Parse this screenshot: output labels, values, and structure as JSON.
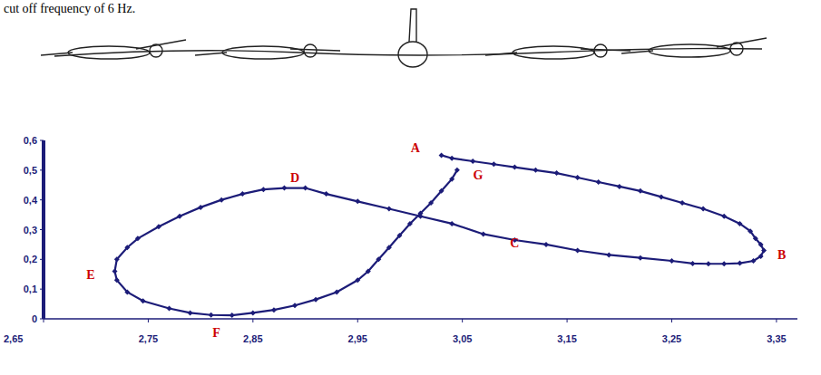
{
  "chart_data": {
    "type": "line",
    "subtitle": "cut off frequency of 6 Hz.",
    "series": [
      {
        "color": "#1c1c78",
        "marker": "diamond",
        "line_style": "solid",
        "x": [
          3.03,
          3.04,
          3.06,
          3.08,
          3.1,
          3.12,
          3.14,
          3.16,
          3.18,
          3.2,
          3.22,
          3.24,
          3.26,
          3.28,
          3.3,
          3.315,
          3.325,
          3.33,
          3.335,
          3.338,
          3.335,
          3.328,
          3.315,
          3.3,
          3.285,
          3.27,
          3.25,
          3.22,
          3.19,
          3.16,
          3.13,
          3.1,
          3.07,
          3.04,
          3.01,
          2.98,
          2.95,
          2.92,
          2.9,
          2.88,
          2.86,
          2.84,
          2.82,
          2.8,
          2.78,
          2.76,
          2.74,
          2.73,
          2.72,
          2.718,
          2.72,
          2.73,
          2.745,
          2.77,
          2.79,
          2.81,
          2.83,
          2.85,
          2.87,
          2.89,
          2.91,
          2.93,
          2.95,
          2.96,
          2.97,
          2.98,
          2.99,
          3.0,
          3.01,
          3.02,
          3.03,
          3.04,
          3.045
        ],
        "values": [
          0.55,
          0.54,
          0.53,
          0.52,
          0.51,
          0.5,
          0.49,
          0.475,
          0.46,
          0.445,
          0.43,
          0.41,
          0.39,
          0.37,
          0.345,
          0.32,
          0.295,
          0.27,
          0.25,
          0.23,
          0.21,
          0.195,
          0.187,
          0.185,
          0.185,
          0.186,
          0.195,
          0.205,
          0.215,
          0.23,
          0.25,
          0.265,
          0.285,
          0.32,
          0.345,
          0.37,
          0.395,
          0.42,
          0.44,
          0.44,
          0.435,
          0.42,
          0.4,
          0.375,
          0.345,
          0.31,
          0.27,
          0.24,
          0.2,
          0.16,
          0.13,
          0.09,
          0.06,
          0.035,
          0.02,
          0.013,
          0.012,
          0.02,
          0.03,
          0.045,
          0.065,
          0.09,
          0.13,
          0.16,
          0.2,
          0.24,
          0.28,
          0.32,
          0.355,
          0.39,
          0.43,
          0.47,
          0.5
        ]
      }
    ],
    "annotations": [
      {
        "text": "A",
        "x": 3.005,
        "y": 0.575,
        "color": "#cc0000"
      },
      {
        "text": "B",
        "x": 3.355,
        "y": 0.215,
        "color": "#cc0000"
      },
      {
        "text": "C",
        "x": 3.1,
        "y": 0.255,
        "color": "#cc0000"
      },
      {
        "text": "D",
        "x": 2.89,
        "y": 0.475,
        "color": "#cc0000"
      },
      {
        "text": "E",
        "x": 2.695,
        "y": 0.15,
        "color": "#cc0000"
      },
      {
        "text": "F",
        "x": 2.815,
        "y": -0.045,
        "color": "#cc0000"
      },
      {
        "text": "G",
        "x": 3.065,
        "y": 0.485,
        "color": "#cc0000"
      }
    ],
    "xlim": [
      2.65,
      3.37
    ],
    "ylim": [
      0,
      0.6
    ],
    "xticks": [
      {
        "value": 2.65,
        "label": "2,65"
      },
      {
        "value": 2.75,
        "label": "2,75"
      },
      {
        "value": 2.85,
        "label": "2,85"
      },
      {
        "value": 2.95,
        "label": "2,95"
      },
      {
        "value": 3.05,
        "label": "3,05"
      },
      {
        "value": 3.15,
        "label": "3,15"
      },
      {
        "value": 3.25,
        "label": "3,25"
      },
      {
        "value": 3.35,
        "label": "3,35"
      }
    ],
    "yticks": [
      0,
      {
        "value": 0.1,
        "label": "0,1"
      },
      {
        "value": 0.2,
        "label": "0,2"
      },
      {
        "value": 0.3,
        "label": "0,3"
      },
      {
        "value": 0.4,
        "label": "0,4"
      },
      {
        "value": 0.5,
        "label": "0,5"
      },
      {
        "value": 0.6,
        "label": "0,6"
      }
    ],
    "grid": false
  }
}
